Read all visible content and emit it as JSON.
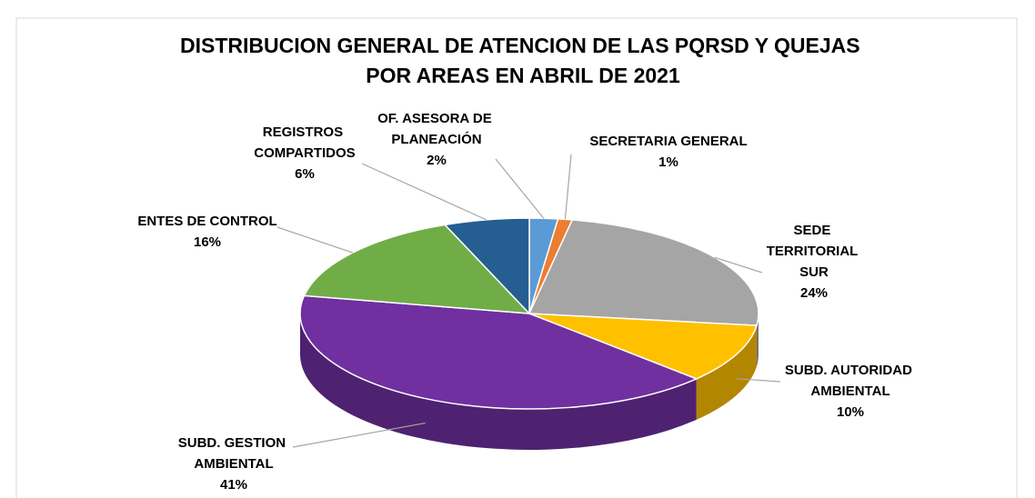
{
  "chart_data": {
    "type": "pie",
    "title": "DISTRIBUCION GENERAL DE ATENCION DE LAS PQRSD Y QUEJAS POR AREAS EN ABRIL DE 2021",
    "categories": [
      "OF. ASESORA DE PLANEACIÓN",
      "SECRETARIA GENERAL",
      "SEDE TERRITORIAL SUR",
      "SUBD. AUTORIDAD AMBIENTAL",
      "SUBD. GESTION AMBIENTAL",
      "ENTES DE CONTROL",
      "REGISTROS COMPARTIDOS"
    ],
    "values": [
      2,
      1,
      24,
      10,
      41,
      16,
      6
    ],
    "value_labels": [
      "2%",
      "1%",
      "24%",
      "10%",
      "41%",
      "16%",
      "6%"
    ],
    "colors": [
      "#5b9bd5",
      "#ed7d31",
      "#a5a5a5",
      "#ffc000",
      "#7030a0",
      "#70ad47",
      "#255e91"
    ]
  }
}
